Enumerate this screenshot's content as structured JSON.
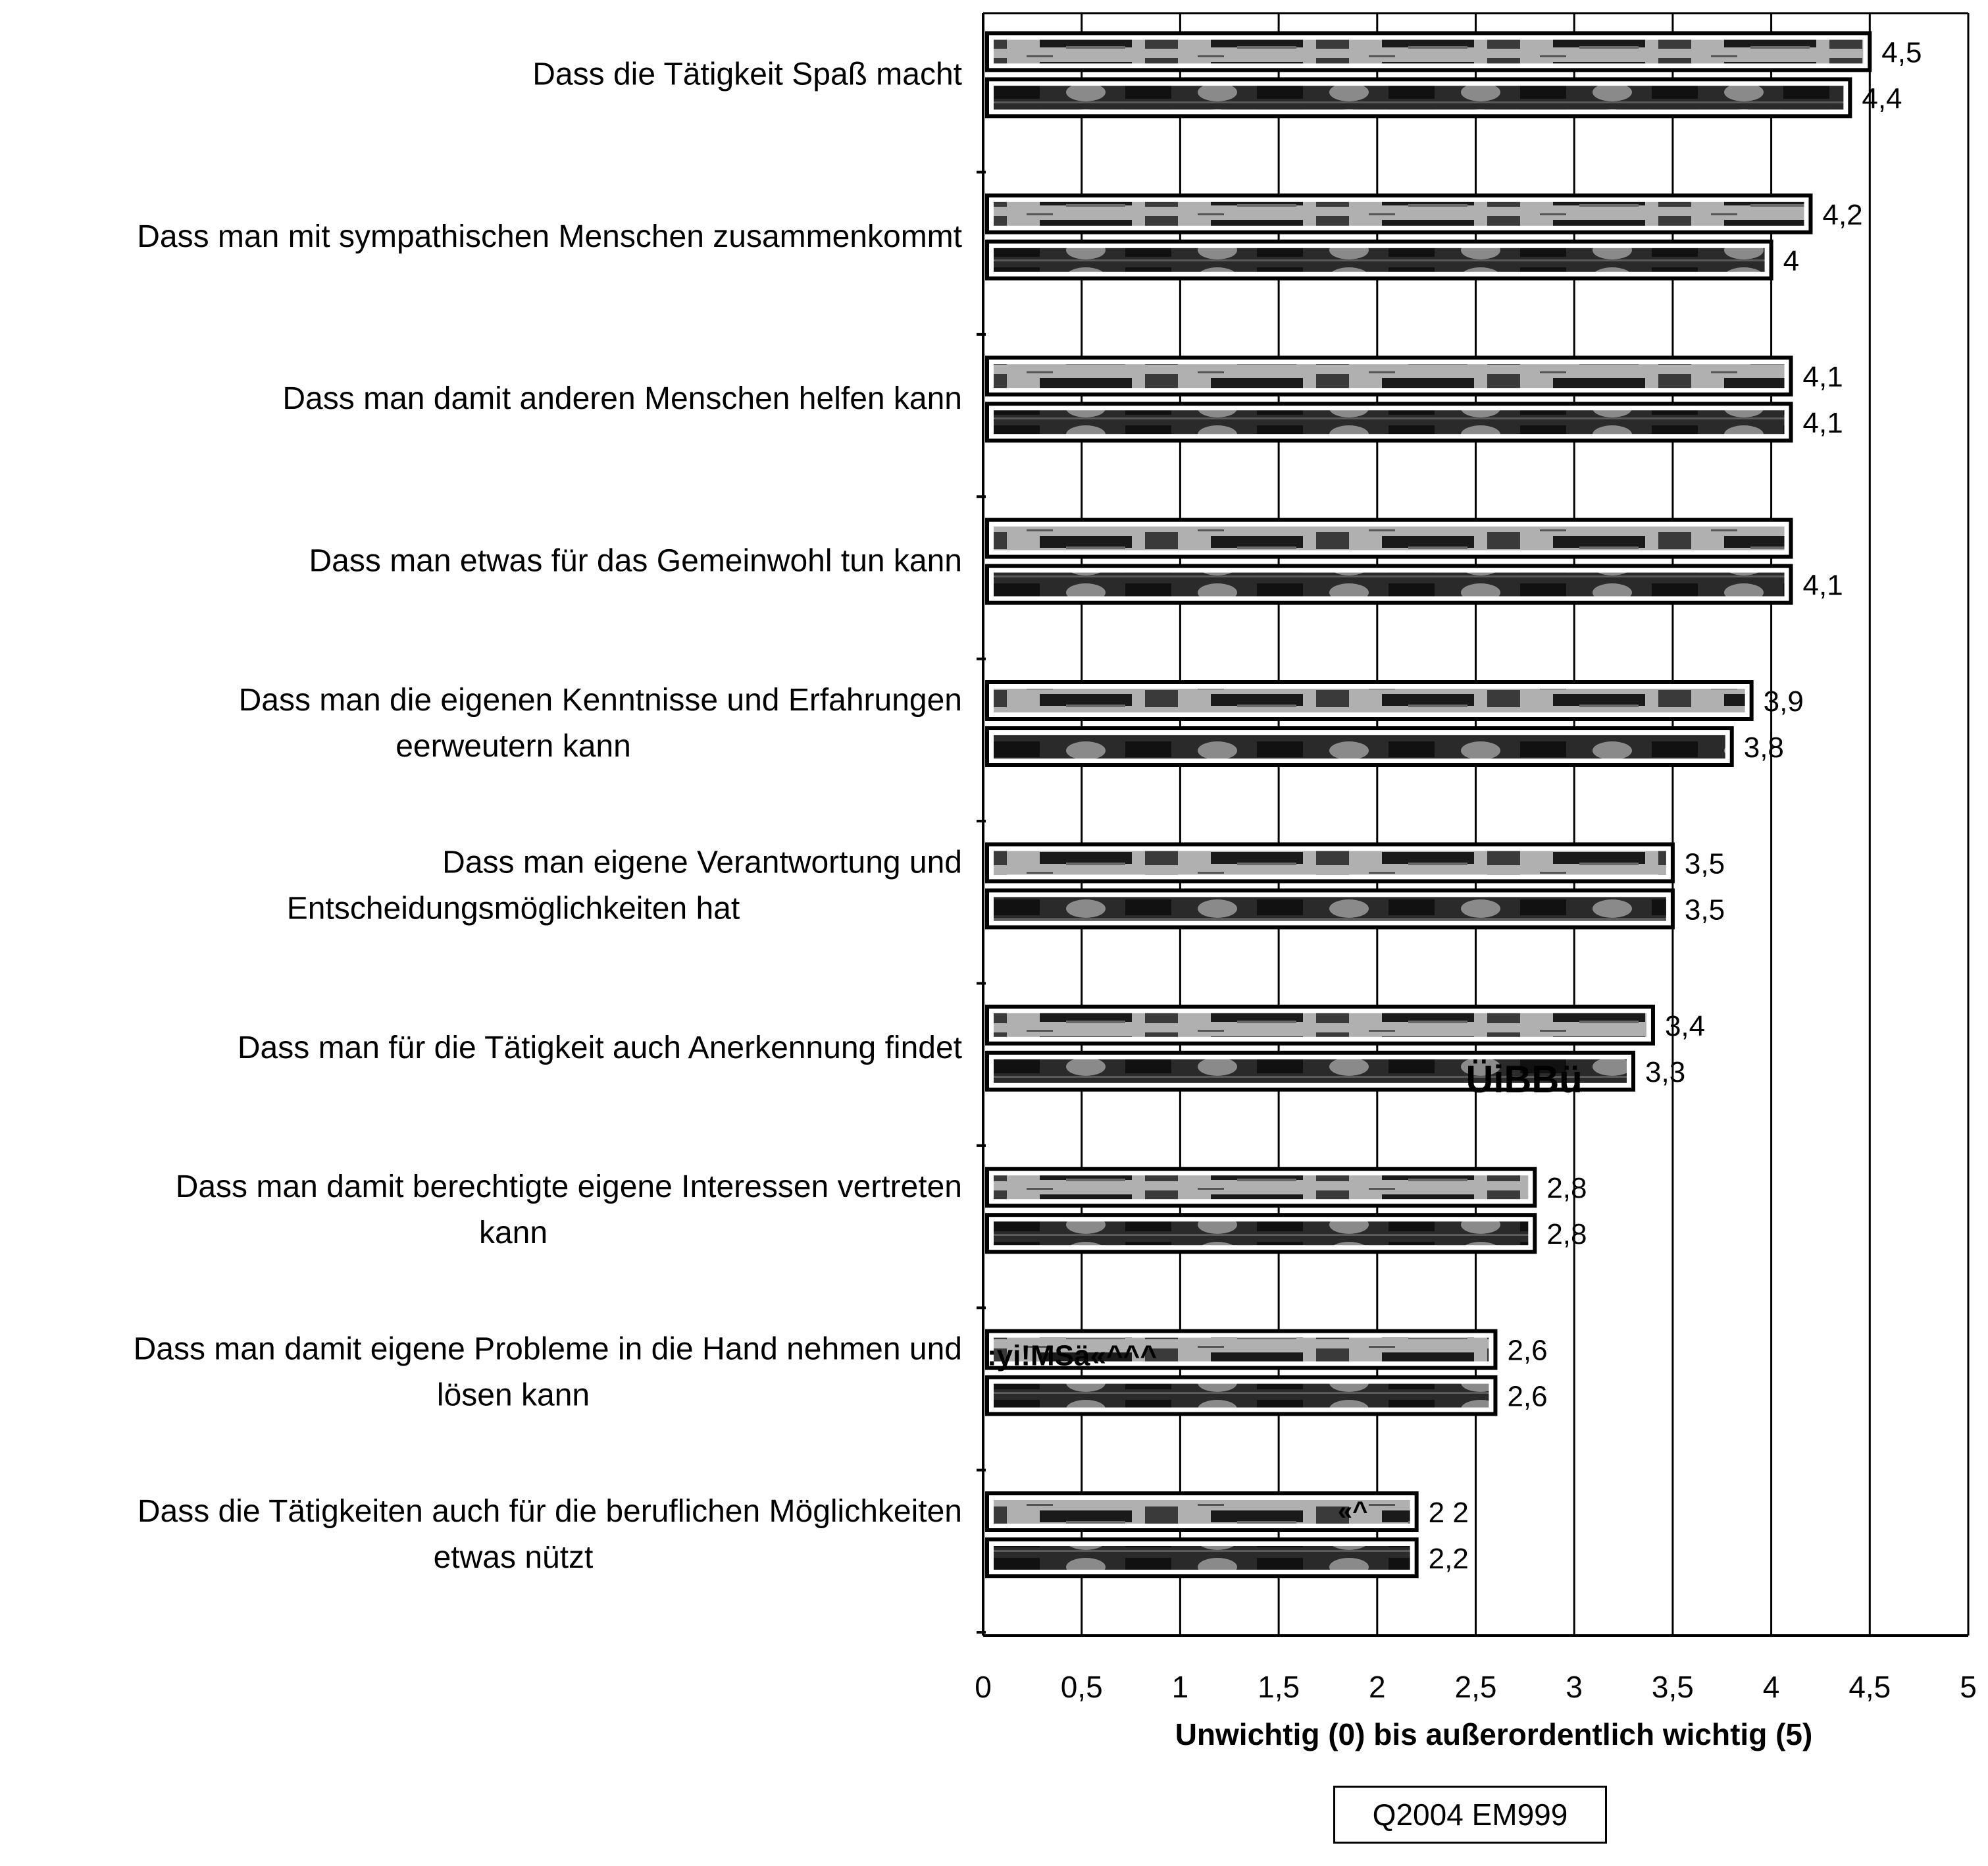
{
  "chart_data": {
    "type": "bar",
    "orientation": "horizontal",
    "title": "",
    "xlabel": "Unwichtig (0) bis außerordentlich wichtig (5)",
    "ylabel": "",
    "xlim": [
      0,
      5
    ],
    "ticks": [
      "0",
      "0,5",
      "1",
      "1,5",
      "2",
      "2,5",
      "3",
      "3,5",
      "4",
      "4,5",
      "5"
    ],
    "grid": true,
    "legend": "none",
    "categories": [
      [
        "Dass die Tätigkeit Spaß macht"
      ],
      [
        "Dass man mit sympathischen Menschen zusammenkommt"
      ],
      [
        "Dass man damit anderen Menschen helfen kann"
      ],
      [
        "Dass man etwas für das Gemeinwohl tun kann"
      ],
      [
        "Dass man die eigenen Kenntnisse und Erfahrungen",
        "eerweutern kann"
      ],
      [
        "Dass man eigene Verantwortung und",
        "Entscheidungsmöglichkeiten hat"
      ],
      [
        "Dass man für die Tätigkeit auch Anerkennung findet"
      ],
      [
        "Dass man damit berechtigte eigene Interessen vertreten",
        "kann"
      ],
      [
        "Dass man damit eigene Probleme in die Hand nehmen und",
        "lösen kann"
      ],
      [
        "Dass die Tätigkeiten auch für die beruflichen Möglichkeiten",
        "etwas nützt"
      ]
    ],
    "series": [
      {
        "values": [
          4.5,
          4.2,
          4.1,
          4.1,
          3.9,
          3.5,
          3.4,
          2.8,
          2.6,
          2.2
        ],
        "labels": [
          "4,5",
          "4,2",
          "4,1",
          "",
          "3,9",
          "3,5",
          "3,4",
          "2,8",
          "2,6",
          "2 2"
        ]
      },
      {
        "values": [
          4.4,
          4.0,
          4.1,
          4.1,
          3.8,
          3.5,
          3.3,
          2.8,
          2.6,
          2.2
        ],
        "labels": [
          "4,4",
          "4",
          "4,1",
          "4,1",
          "3,8",
          "3,5",
          "3,3",
          "2,8",
          "2,6",
          "2,2"
        ]
      }
    ],
    "scan_artifacts": [
      {
        "category": 6,
        "text": "ÜiBBü"
      },
      {
        "category": 8,
        "text": ":yi!MSä«^^^"
      },
      {
        "category": 9,
        "text": "«^"
      }
    ]
  },
  "source": "Q2004  EM999",
  "colors": {
    "bar_fill": "#9a9a9a",
    "bar_pattern": "#1a1a1a",
    "axis": "#000000",
    "grid": "#000000"
  }
}
